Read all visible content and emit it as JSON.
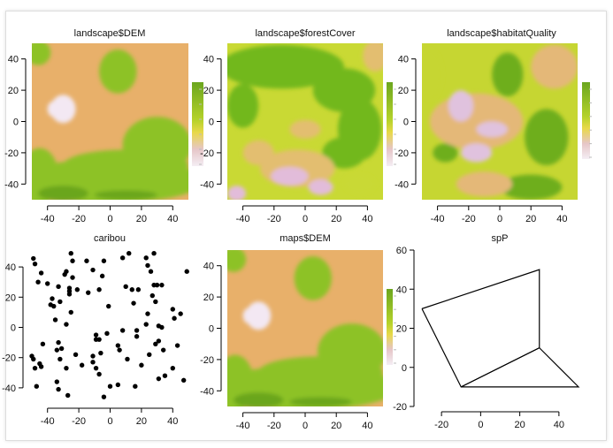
{
  "chart_data": [
    {
      "type": "heatmap",
      "title": "landscape$DEM",
      "xlim": [
        -50,
        50
      ],
      "ylim": [
        -50,
        50
      ],
      "xticks": [
        -40,
        -20,
        0,
        20,
        40
      ],
      "yticks": [
        40,
        20,
        0,
        -20,
        -40
      ],
      "legend": "right",
      "colors": {
        "high": "#6BA61F",
        "mid": "#8DC225",
        "low": "#E8B06A",
        "lowest": "#F3E8F3"
      }
    },
    {
      "type": "heatmap",
      "title": "landscape$forestCover",
      "xlim": [
        -50,
        50
      ],
      "ylim": [
        -50,
        50
      ],
      "xticks": [
        -40,
        -20,
        0,
        20,
        40
      ],
      "yticks": [
        40,
        20,
        0,
        -20,
        -40
      ],
      "legend": "right",
      "colors": {
        "high": "#72B81E",
        "mid": "#C9D934",
        "low": "#E3BE70",
        "lowest": "#E2BCDA"
      }
    },
    {
      "type": "heatmap",
      "title": "landscape$habitatQuality",
      "xlim": [
        -50,
        50
      ],
      "ylim": [
        -50,
        50
      ],
      "xticks": [
        -40,
        -20,
        0,
        20,
        40
      ],
      "yticks": [
        40,
        20,
        0,
        -20,
        -40
      ],
      "legend": "right",
      "colors": {
        "high": "#6EAE1F",
        "mid": "#C6D632",
        "low": "#E4B878",
        "lowest": "#E0C2DE"
      }
    },
    {
      "type": "scatter",
      "title": "caribou",
      "xlim": [
        -50,
        50
      ],
      "ylim": [
        -50,
        50
      ],
      "xticks": [
        -40,
        -20,
        0,
        20,
        40
      ],
      "yticks": [
        40,
        20,
        0,
        -20,
        -40
      ],
      "points": [
        [
          -49,
          45.6
        ],
        [
          -48,
          42
        ],
        [
          -44,
          36
        ],
        [
          -46,
          30
        ],
        [
          -40,
          29
        ],
        [
          -33,
          27
        ],
        [
          -25,
          49
        ],
        [
          -24,
          44
        ],
        [
          -24,
          33
        ],
        [
          -29,
          35
        ],
        [
          -28,
          37
        ],
        [
          -26,
          26
        ],
        [
          -26,
          24
        ],
        [
          -26,
          22
        ],
        [
          -21,
          25
        ],
        [
          -15,
          44
        ],
        [
          -11,
          38
        ],
        [
          -4,
          44
        ],
        [
          -5,
          34
        ],
        [
          -7,
          25
        ],
        [
          -14,
          23
        ],
        [
          8,
          46
        ],
        [
          12,
          49
        ],
        [
          23,
          46
        ],
        [
          28,
          49
        ],
        [
          24,
          41
        ],
        [
          26,
          37
        ],
        [
          28,
          28
        ],
        [
          30,
          28
        ],
        [
          33,
          28
        ],
        [
          10,
          27
        ],
        [
          14,
          25
        ],
        [
          18,
          25
        ],
        [
          15,
          16
        ],
        [
          27,
          21
        ],
        [
          29,
          17
        ],
        [
          -1,
          14
        ],
        [
          -37,
          19
        ],
        [
          -38,
          15
        ],
        [
          -36,
          14
        ],
        [
          -32,
          17
        ],
        [
          -25,
          10
        ],
        [
          -35,
          5
        ],
        [
          -28,
          2
        ],
        [
          24,
          9
        ],
        [
          23,
          2
        ],
        [
          31,
          1
        ],
        [
          33,
          0
        ],
        [
          40,
          12
        ],
        [
          45,
          9
        ],
        [
          41,
          6
        ],
        [
          49,
          37
        ],
        [
          8,
          -2
        ],
        [
          17,
          -2
        ],
        [
          17,
          -6
        ],
        [
          -2,
          -4
        ],
        [
          -9,
          -5
        ],
        [
          -9,
          -8
        ],
        [
          -7,
          -8
        ],
        [
          -43,
          -11
        ],
        [
          -33,
          -10
        ],
        [
          -31,
          -14
        ],
        [
          -34,
          -15
        ],
        [
          -32,
          -21
        ],
        [
          -22,
          -18
        ],
        [
          -6,
          -17
        ],
        [
          -11,
          -19
        ],
        [
          -11,
          -23
        ],
        [
          -9,
          -27
        ],
        [
          -7,
          -31
        ],
        [
          -18,
          -25
        ],
        [
          -28,
          -27
        ],
        [
          5,
          -12
        ],
        [
          6,
          -15
        ],
        [
          11,
          -21
        ],
        [
          20,
          -25
        ],
        [
          25,
          -18
        ],
        [
          29,
          -11
        ],
        [
          31,
          -9
        ],
        [
          34,
          -15
        ],
        [
          43,
          -12
        ],
        [
          40,
          -27
        ],
        [
          35,
          -32
        ],
        [
          31,
          -34
        ],
        [
          47,
          -35
        ],
        [
          -50,
          -19
        ],
        [
          -49,
          -21
        ],
        [
          -48,
          -27
        ],
        [
          -45,
          -24
        ],
        [
          -44,
          -26
        ],
        [
          -47,
          -39
        ],
        [
          -34,
          -36
        ],
        [
          -33,
          -41
        ],
        [
          -27,
          -45
        ],
        [
          -4,
          -46
        ],
        [
          0,
          -39
        ],
        [
          5,
          -38
        ],
        [
          16,
          -39
        ]
      ]
    },
    {
      "type": "heatmap",
      "title": "maps$DEM",
      "xlim": [
        -50,
        50
      ],
      "ylim": [
        -50,
        50
      ],
      "xticks": [
        -40,
        -20,
        0,
        20,
        40
      ],
      "yticks": [
        40,
        20,
        0,
        -20,
        -40
      ],
      "legend": "right",
      "colors": {
        "high": "#6BA61F",
        "mid": "#8DC225",
        "low": "#E8B06A",
        "lowest": "#F3E8F3"
      }
    },
    {
      "type": "line",
      "title": "spP",
      "xlim": [
        -30,
        50
      ],
      "ylim": [
        -20,
        60
      ],
      "xticks": [
        -20,
        0,
        20,
        40
      ],
      "yticks": [
        60,
        40,
        20,
        0,
        -20
      ],
      "polygons": [
        [
          [
            -30,
            30
          ],
          [
            30,
            50
          ],
          [
            30,
            10
          ],
          [
            -10,
            -10
          ],
          [
            -30,
            30
          ]
        ],
        [
          [
            30,
            10
          ],
          [
            50,
            -10
          ],
          [
            -10,
            -10
          ],
          [
            30,
            10
          ]
        ]
      ]
    }
  ]
}
